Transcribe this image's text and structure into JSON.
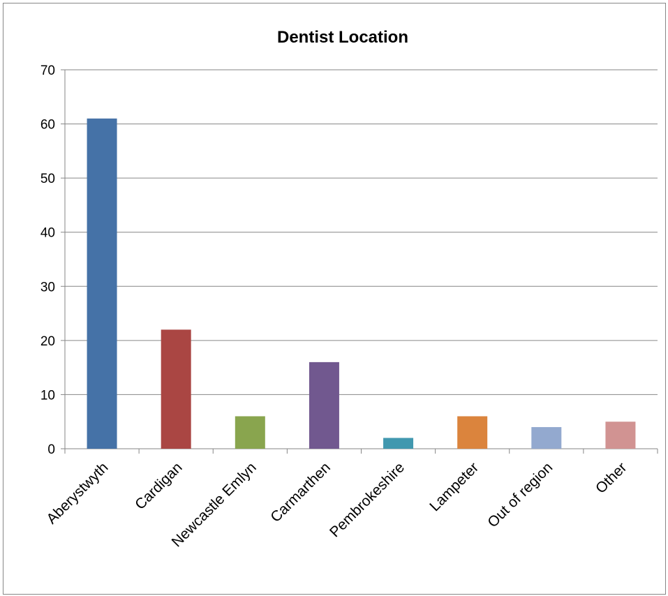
{
  "chart_data": {
    "type": "bar",
    "title": "Dentist Location",
    "xlabel": "",
    "ylabel": "",
    "categories": [
      "Aberystwyth",
      "Cardigan",
      "Newcastle Emlyn",
      "Carmarthen",
      "Pembrokeshire",
      "Lampeter",
      "Out of region",
      "Other"
    ],
    "values": [
      61,
      22,
      6,
      16,
      2,
      6,
      4,
      5
    ],
    "colors": [
      "#4572A7",
      "#AA4643",
      "#89A54E",
      "#71588F",
      "#4198AF",
      "#DB843D",
      "#93A9CF",
      "#D19392"
    ],
    "ylim": [
      0,
      70
    ],
    "yticks": [
      0,
      10,
      20,
      30,
      40,
      50,
      60,
      70
    ],
    "grid": true,
    "legend": "none"
  }
}
